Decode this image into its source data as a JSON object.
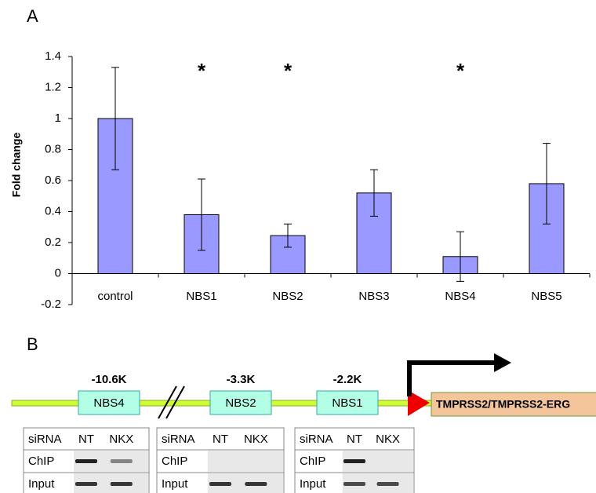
{
  "panel_labels": [
    "A",
    "B"
  ],
  "chart_data": {
    "type": "bar",
    "y_label": "Fold change",
    "categories": [
      "control",
      "NBS1",
      "NBS2",
      "NBS3",
      "NBS4",
      "NBS5"
    ],
    "values": [
      1.0,
      0.38,
      0.245,
      0.52,
      0.11,
      0.58
    ],
    "errors": [
      0.33,
      0.23,
      0.075,
      0.15,
      0.16,
      0.26
    ],
    "significance": [
      null,
      "*",
      "*",
      null,
      "*",
      null
    ],
    "color": "#9999ff",
    "ylim": [
      -0.2,
      1.4
    ],
    "yticks": [
      -0.2,
      0,
      0.2,
      0.4,
      0.6,
      0.8,
      1,
      1.2,
      1.4
    ]
  },
  "diagram": {
    "sites": [
      {
        "label": "NBS4",
        "position": "-10.6K"
      },
      {
        "label": "NBS2",
        "position": "-3.3K"
      },
      {
        "label": "NBS1",
        "position": "-2.2K"
      }
    ],
    "gene": "TMPRSS2/TMPRSS2-ERG",
    "gels": [
      {
        "header": [
          "siRNA",
          "NT",
          "NKX"
        ],
        "rows": [
          "ChIP",
          "Input"
        ]
      },
      {
        "header": [
          "siRNA",
          "NT",
          "NKX"
        ],
        "rows": [
          "ChIP",
          "Input"
        ]
      },
      {
        "header": [
          "siRNA",
          "NT",
          "NKX"
        ],
        "rows": [
          "ChIP",
          "Input"
        ]
      }
    ]
  }
}
